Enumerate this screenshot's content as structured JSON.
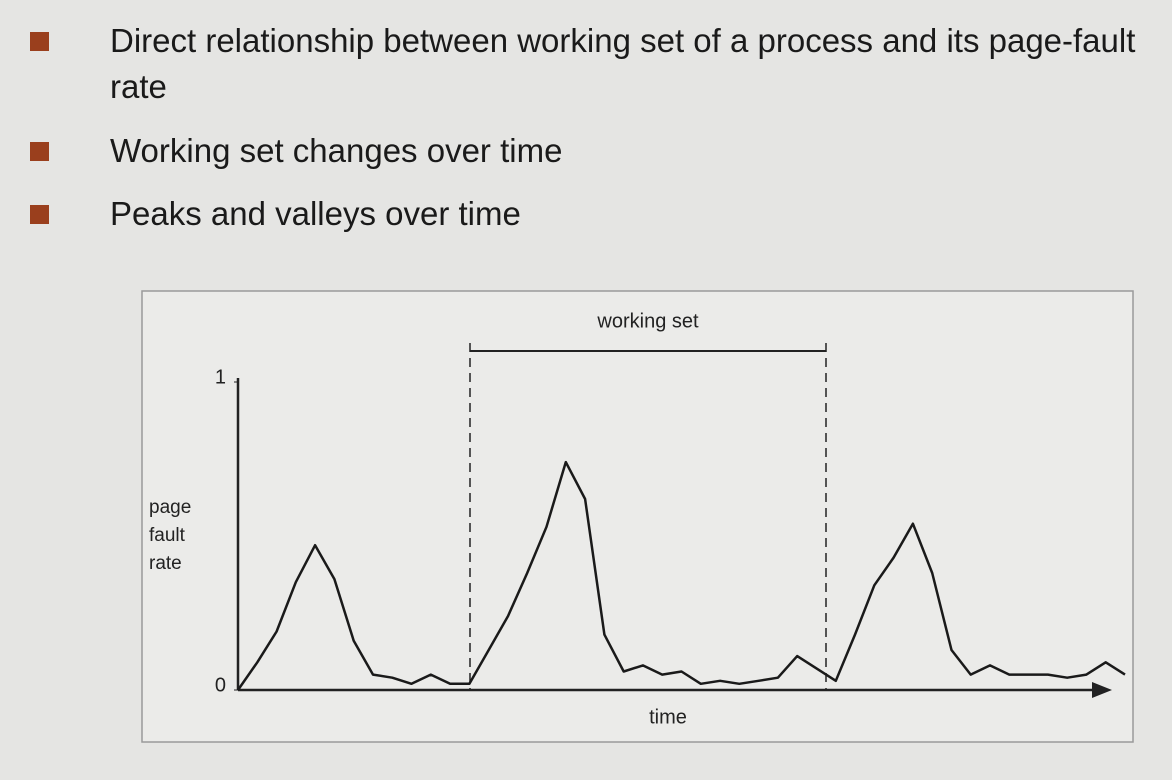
{
  "bullets": [
    "Direct relationship between working set of a process and its page-fault rate",
    "Working set changes over time",
    "Peaks and valleys over time"
  ],
  "chart_data": {
    "type": "line",
    "x_label": "time",
    "y_label": "page fault rate",
    "annotation": "working set",
    "categories": [
      null,
      null,
      null,
      null,
      null,
      null,
      null,
      null,
      null,
      null,
      null,
      null,
      null,
      null,
      null,
      null,
      null,
      null,
      null,
      null,
      null,
      null,
      null,
      null,
      null,
      null,
      null,
      null,
      null,
      null,
      null,
      null,
      null,
      null,
      null,
      null,
      null,
      null,
      null,
      null,
      null,
      null,
      null,
      null,
      null,
      null,
      null
    ],
    "values": [
      0,
      0.09,
      0.19,
      0.35,
      0.47,
      0.36,
      0.16,
      0.05,
      0.04,
      0.02,
      0.05,
      0.02,
      0.02,
      0.13,
      0.24,
      0.38,
      0.53,
      0.74,
      0.62,
      0.18,
      0.06,
      0.08,
      0.05,
      0.06,
      0.02,
      0.03,
      0.02,
      0.03,
      0.04,
      0.11,
      0.07,
      0.03,
      0.18,
      0.34,
      0.43,
      0.54,
      0.38,
      0.13,
      0.05,
      0.08,
      0.05,
      0.05,
      0.05,
      0.04,
      0.05,
      0.09,
      0.05
    ],
    "color": "#1a1a1a",
    "ylim": [
      0,
      1
    ],
    "yticks": [
      0,
      1
    ]
  }
}
